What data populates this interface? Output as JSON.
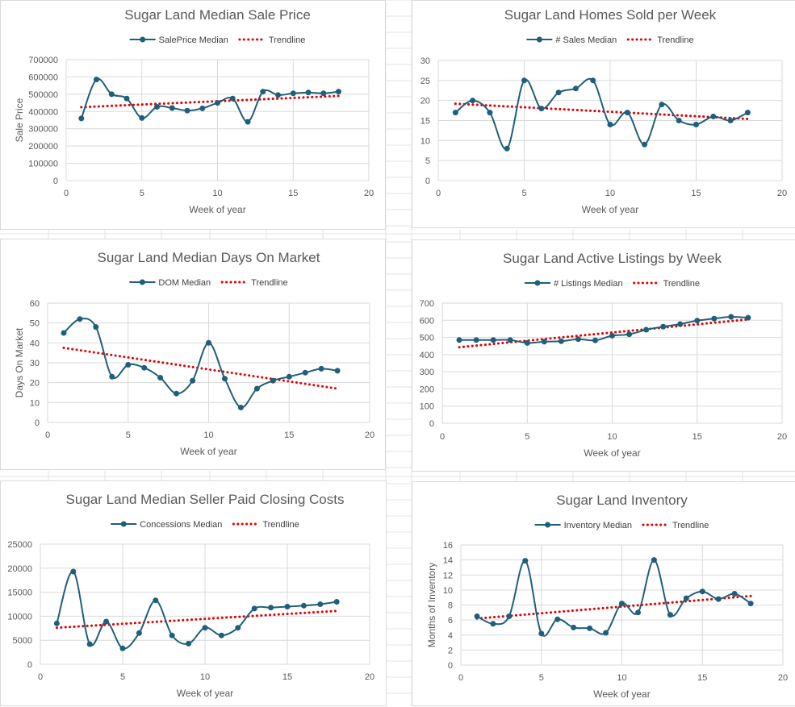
{
  "style": {
    "series_color": "#1f5f7a",
    "trend_color": "#e00000",
    "gridline_color": "#d9d9d9",
    "sheet_grid_color": "#e3e3e3"
  },
  "chart_data": [
    {
      "type": "line",
      "title": "Sugar Land Median Sale Price",
      "xlabel": "Week of year",
      "ylabel": "Sale Price",
      "xlim": [
        0,
        20
      ],
      "ylim": [
        0,
        700000
      ],
      "x_ticks": [
        "0",
        "5",
        "10",
        "15",
        "20"
      ],
      "y_ticks": [
        "0",
        "100000",
        "200000",
        "300000",
        "400000",
        "500000",
        "600000",
        "700000"
      ],
      "legend_position": "top",
      "grid": true,
      "series": [
        {
          "name": "SalePrice Median",
          "x": [
            1,
            2,
            3,
            4,
            5,
            6,
            7,
            8,
            9,
            10,
            11,
            12,
            13,
            14,
            15,
            16,
            17,
            18
          ],
          "values": [
            360000,
            585000,
            500000,
            475000,
            362000,
            427000,
            420000,
            405000,
            418000,
            450000,
            475000,
            340000,
            515000,
            495000,
            505000,
            510000,
            505000,
            515000
          ]
        }
      ],
      "trendline": {
        "name": "Trendline",
        "start": [
          1,
          425000
        ],
        "end": [
          18,
          490000
        ]
      }
    },
    {
      "type": "line",
      "title": "Sugar Land Homes Sold per Week",
      "xlabel": "Week of year",
      "ylabel": "",
      "xlim": [
        0,
        20
      ],
      "ylim": [
        0,
        30
      ],
      "x_ticks": [
        "0",
        "5",
        "10",
        "15",
        "20"
      ],
      "y_ticks": [
        "0",
        "5",
        "10",
        "15",
        "20",
        "25",
        "30"
      ],
      "legend_position": "top",
      "grid": true,
      "series": [
        {
          "name": "# Sales Median",
          "x": [
            1,
            2,
            3,
            4,
            5,
            6,
            7,
            8,
            9,
            10,
            11,
            12,
            13,
            14,
            15,
            16,
            17,
            18
          ],
          "values": [
            17,
            20,
            17,
            8,
            25,
            18,
            22,
            23,
            25,
            14,
            17,
            9,
            19,
            15,
            14,
            16,
            15,
            17
          ]
        }
      ],
      "trendline": {
        "name": "Trendline",
        "start": [
          1,
          19.2
        ],
        "end": [
          18,
          15.4
        ]
      }
    },
    {
      "type": "line",
      "title": "Sugar Land Median Days On Market",
      "xlabel": "Week of year",
      "ylabel": "Days On Market",
      "xlim": [
        0,
        20
      ],
      "ylim": [
        0,
        60
      ],
      "x_ticks": [
        "0",
        "5",
        "10",
        "15",
        "20"
      ],
      "y_ticks": [
        "0",
        "10",
        "20",
        "30",
        "40",
        "50",
        "60"
      ],
      "legend_position": "top",
      "grid": true,
      "series": [
        {
          "name": "DOM Median",
          "x": [
            1,
            2,
            3,
            4,
            5,
            6,
            7,
            8,
            9,
            10,
            11,
            12,
            13,
            14,
            15,
            16,
            17,
            18
          ],
          "values": [
            45,
            52,
            48,
            23,
            29,
            27.5,
            22.5,
            14.5,
            21,
            40,
            22,
            7.5,
            17,
            21,
            23,
            25,
            27,
            26
          ]
        }
      ],
      "trendline": {
        "name": "Trendline",
        "start": [
          1,
          37.5
        ],
        "end": [
          18,
          17
        ]
      }
    },
    {
      "type": "line",
      "title": "Sugar Land Active Listings by Week",
      "xlabel": "Week of year",
      "ylabel": "",
      "xlim": [
        0,
        20
      ],
      "ylim": [
        0,
        700
      ],
      "x_ticks": [
        "0",
        "5",
        "10",
        "15",
        "20"
      ],
      "y_ticks": [
        "0",
        "100",
        "200",
        "300",
        "400",
        "500",
        "600",
        "700"
      ],
      "legend_position": "top",
      "grid": true,
      "series": [
        {
          "name": "# Listings Median",
          "x": [
            1,
            2,
            3,
            4,
            5,
            6,
            7,
            8,
            9,
            10,
            11,
            12,
            13,
            14,
            15,
            16,
            17,
            18
          ],
          "values": [
            485,
            485,
            485,
            485,
            468,
            475,
            478,
            490,
            483,
            510,
            518,
            545,
            563,
            578,
            598,
            610,
            620,
            615
          ]
        }
      ],
      "trendline": {
        "name": "Trendline",
        "start": [
          1,
          443
        ],
        "end": [
          18,
          605
        ]
      }
    },
    {
      "type": "line",
      "title": "Sugar Land Median Seller Paid Closing Costs",
      "xlabel": "Week of year",
      "ylabel": "",
      "xlim": [
        0,
        20
      ],
      "ylim": [
        0,
        25000
      ],
      "x_ticks": [
        "0",
        "5",
        "10",
        "15",
        "20"
      ],
      "y_ticks": [
        "0",
        "5000",
        "10000",
        "15000",
        "20000",
        "25000"
      ],
      "legend_position": "top",
      "grid": true,
      "series": [
        {
          "name": "Concessions Median",
          "x": [
            1,
            2,
            3,
            4,
            5,
            6,
            7,
            8,
            9,
            10,
            11,
            12,
            13,
            14,
            15,
            16,
            17,
            18
          ],
          "values": [
            8500,
            19300,
            4200,
            8900,
            3300,
            6500,
            13300,
            6000,
            4300,
            7600,
            6000,
            7600,
            11600,
            11800,
            12000,
            12200,
            12500,
            13000
          ]
        }
      ],
      "trendline": {
        "name": "Trendline",
        "start": [
          1,
          7600
        ],
        "end": [
          18,
          11100
        ]
      }
    },
    {
      "type": "line",
      "title": "Sugar Land Inventory",
      "xlabel": "Week of year",
      "ylabel": "Months of Inventory",
      "xlim": [
        0,
        20
      ],
      "ylim": [
        0,
        16
      ],
      "x_ticks": [
        "0",
        "5",
        "10",
        "15",
        "20"
      ],
      "y_ticks": [
        "0",
        "2",
        "4",
        "6",
        "8",
        "10",
        "12",
        "14",
        "16"
      ],
      "legend_position": "top",
      "grid": true,
      "series": [
        {
          "name": "Inventory Median",
          "x": [
            1,
            2,
            3,
            4,
            5,
            6,
            7,
            8,
            9,
            10,
            11,
            12,
            13,
            14,
            15,
            16,
            17,
            18
          ],
          "values": [
            6.5,
            5.5,
            6.5,
            13.9,
            4.2,
            6.1,
            5.0,
            4.9,
            4.3,
            8.2,
            7.0,
            14.0,
            6.7,
            8.9,
            9.8,
            8.8,
            9.5,
            8.2
          ]
        }
      ],
      "trendline": {
        "name": "Trendline",
        "start": [
          1,
          6.2
        ],
        "end": [
          18,
          9.2
        ]
      }
    }
  ]
}
